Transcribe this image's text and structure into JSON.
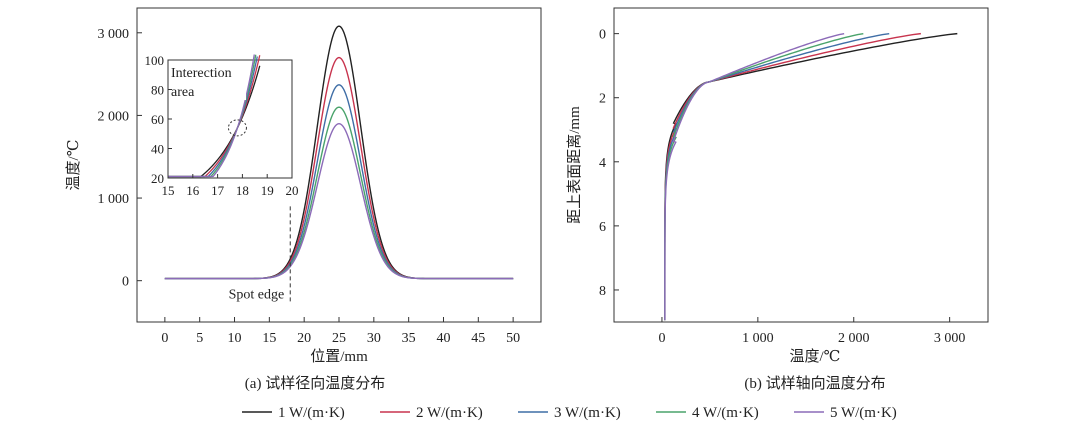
{
  "colors": {
    "k1": "#222222",
    "k2": "#c8344e",
    "k3": "#3f6ea6",
    "k4": "#4aa36b",
    "k5": "#8c6bb8"
  },
  "legend": [
    {
      "key": "k1",
      "label": "1 W/(m·K)"
    },
    {
      "key": "k2",
      "label": "2 W/(m·K)"
    },
    {
      "key": "k3",
      "label": "3 W/(m·K)"
    },
    {
      "key": "k4",
      "label": "4 W/(m·K)"
    },
    {
      "key": "k5",
      "label": "5 W/(m·K)"
    }
  ],
  "chart_data": [
    {
      "type": "line",
      "caption": "(a) 试样径向温度分布",
      "xlabel": "位置/mm",
      "ylabel": "温度/℃",
      "xlim": [
        -4,
        54
      ],
      "ylim": [
        -500,
        3300
      ],
      "xticks": [
        0,
        5,
        10,
        15,
        20,
        25,
        30,
        35,
        40,
        45,
        50
      ],
      "xtick_labels": [
        "0",
        "5",
        "10",
        "15",
        "20",
        "25",
        "30",
        "35",
        "40",
        "45",
        "50"
      ],
      "yticks": [
        0,
        1000,
        2000,
        3000
      ],
      "ytick_labels": [
        "0",
        "1 000",
        "2 000",
        "3 000"
      ],
      "spot_edge": {
        "x": 18,
        "label": "Spot edge"
      },
      "model": {
        "center": 25,
        "base": 25,
        "width": 3.1
      },
      "series": [
        {
          "key": "k1",
          "name": "1 W/(m·K)",
          "peak": 3080
        },
        {
          "key": "k2",
          "name": "2 W/(m·K)",
          "peak": 2700
        },
        {
          "key": "k3",
          "name": "3 W/(m·K)",
          "peak": 2370
        },
        {
          "key": "k4",
          "name": "4 W/(m·K)",
          "peak": 2100
        },
        {
          "key": "k5",
          "name": "5 W/(m·K)",
          "peak": 1900
        }
      ],
      "inset": {
        "xlim": [
          15,
          20
        ],
        "ylim": [
          20,
          100
        ],
        "xticks": [
          15,
          16,
          17,
          18,
          19,
          20
        ],
        "xtick_labels": [
          "15",
          "16",
          "17",
          "18",
          "19",
          "20"
        ],
        "yticks": [
          20,
          40,
          60,
          80,
          100
        ],
        "ytick_labels": [
          "20",
          "40",
          "60",
          "80",
          "100"
        ],
        "annotation_line1": "Interection",
        "annotation_line2": "area",
        "intersection": {
          "x": 17.8,
          "y": 54
        }
      }
    },
    {
      "type": "line",
      "caption": "(b) 试样轴向温度分布",
      "xlabel": "温度/℃",
      "ylabel": "距上表面距离/mm",
      "xlim": [
        -500,
        3400
      ],
      "ylim": [
        -0.8,
        9
      ],
      "y_inverted": true,
      "xticks": [
        0,
        1000,
        2000,
        3000
      ],
      "xtick_labels": [
        "0",
        "1 000",
        "2 000",
        "3 000"
      ],
      "yticks": [
        0,
        2,
        4,
        6,
        8
      ],
      "ytick_labels": [
        "0",
        "2",
        "4",
        "6",
        "8"
      ],
      "series": [
        {
          "key": "k1",
          "name": "1 W/(m·K)",
          "surface": 3080
        },
        {
          "key": "k2",
          "name": "2 W/(m·K)",
          "surface": 2700
        },
        {
          "key": "k3",
          "name": "3 W/(m·K)",
          "surface": 2370
        },
        {
          "key": "k4",
          "name": "4 W/(m·K)",
          "surface": 2100
        },
        {
          "key": "k5",
          "name": "5 W/(m·K)",
          "surface": 1900
        }
      ]
    }
  ]
}
